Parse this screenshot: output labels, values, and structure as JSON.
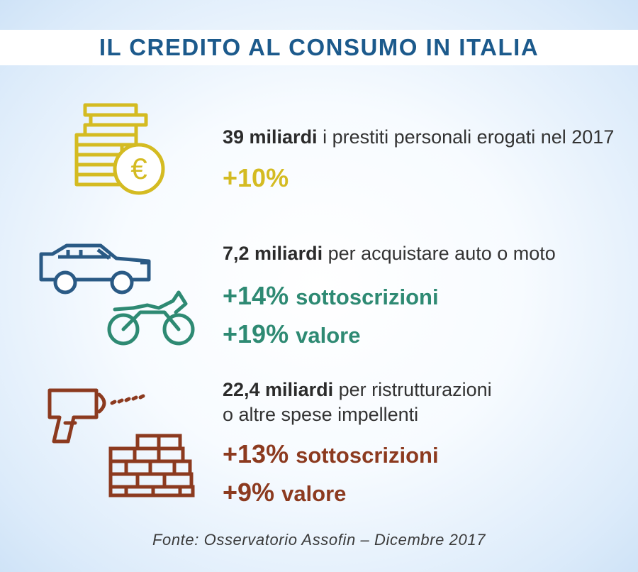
{
  "title": "IL CREDITO AL CONSUMO IN ITALIA",
  "colors": {
    "title": "#1c5a8c",
    "coins": "#d4bb22",
    "car": "#2a5a85",
    "moto": "#2e8a73",
    "tools": "#8c3a1f"
  },
  "sections": [
    {
      "icon": "coins-euro-icon",
      "amount": "39 miliardi",
      "description": " i prestiti personali erogati nel 2017",
      "stats": [
        {
          "value": "+10%",
          "label": ""
        }
      ]
    },
    {
      "icon": "car-motorcycle-icon",
      "amount": "7,2 miliardi",
      "description": " per acquistare auto o moto",
      "stats": [
        {
          "value": "+14%",
          "label": "sottoscrizioni"
        },
        {
          "value": "+19%",
          "label": "valore"
        }
      ]
    },
    {
      "icon": "drill-brick-wall-icon",
      "amount": "22,4 miliardi",
      "description": " per ristrutturazioni",
      "description2": "o altre spese impellenti",
      "stats": [
        {
          "value": "+13%",
          "label": "sottoscrizioni"
        },
        {
          "value": "+9%",
          "label": "valore"
        }
      ]
    }
  ],
  "source": "Fonte: Osservatorio Assofin – Dicembre 2017"
}
